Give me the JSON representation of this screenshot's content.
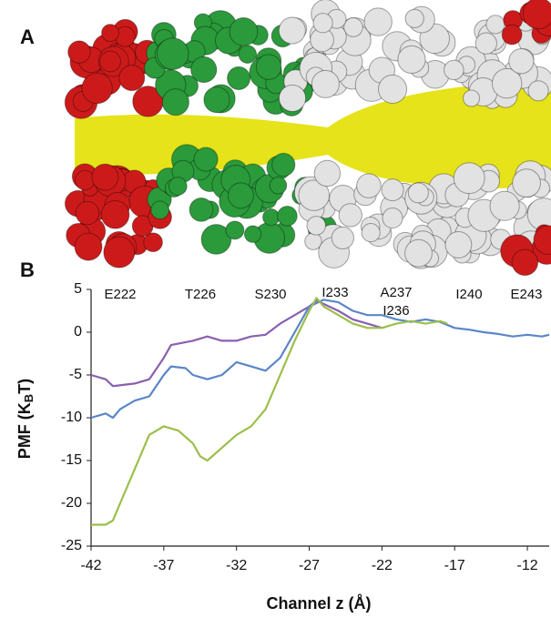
{
  "panel_a_label": "A",
  "chart_data": {
    "type": "line",
    "panel_label": "B",
    "xlabel": "Channel z (Å)",
    "ylabel": [
      "PMF (K",
      "B",
      "T)"
    ],
    "annotations": [
      "E222",
      "T226",
      "S230",
      "I233",
      "A237",
      "I236",
      "I240",
      "E243"
    ],
    "xlim": [
      -42,
      -10.5
    ],
    "xticks": [
      -42,
      -37,
      -32,
      -27,
      -22,
      -17,
      -12
    ],
    "ylim": [
      -25,
      5
    ],
    "yticks": [
      5,
      0,
      -5,
      -10,
      -15,
      -20,
      -25
    ],
    "series": [
      {
        "color": "#8a5fb0",
        "x": [
          -42,
          -41,
          -40.5,
          -39,
          -38,
          -37,
          -36.5,
          -35,
          -34,
          -33,
          -32,
          -31,
          -30,
          -29,
          -28,
          -27,
          -26.5,
          -25,
          -24,
          -23,
          -22
        ],
        "values": [
          -5,
          -5.5,
          -6.3,
          -6,
          -5.5,
          -3,
          -1.5,
          -1,
          -0.5,
          -1,
          -1,
          -0.5,
          -0.3,
          1,
          2,
          3,
          3.7,
          2.5,
          1.5,
          1,
          0.5
        ]
      },
      {
        "color": "#5a86c8",
        "x": [
          -42,
          -41,
          -40.5,
          -40,
          -39,
          -38,
          -37,
          -36.5,
          -35.5,
          -35,
          -34,
          -33,
          -32,
          -31,
          -30,
          -29,
          -28,
          -27,
          -26,
          -25,
          -24,
          -23,
          -22,
          -21,
          -20,
          -19,
          -18,
          -17,
          -16,
          -15,
          -14,
          -13,
          -12,
          -11,
          -10.5
        ],
        "values": [
          -10,
          -9.5,
          -10,
          -9,
          -8,
          -7.5,
          -5,
          -4,
          -4.2,
          -5,
          -5.5,
          -5,
          -3.5,
          -4,
          -4.5,
          -3,
          0,
          3,
          3.8,
          3.5,
          2.5,
          2,
          2,
          1.5,
          1.2,
          1.5,
          1.2,
          0.5,
          0.3,
          0,
          -0.2,
          -0.5,
          -0.3,
          -0.5,
          -0.3
        ]
      },
      {
        "color": "#9bbf4a",
        "x": [
          -42,
          -41,
          -40.5,
          -40,
          -39,
          -38,
          -37,
          -36,
          -35,
          -34.5,
          -34,
          -33,
          -32,
          -31,
          -30,
          -29,
          -28,
          -27,
          -26.5,
          -26,
          -25,
          -24,
          -23,
          -22,
          -21,
          -20,
          -19,
          -18,
          -17.5
        ],
        "values": [
          -22.5,
          -22.5,
          -22,
          -20,
          -16,
          -12,
          -11,
          -11.5,
          -13,
          -14.5,
          -15,
          -13.5,
          -12,
          -11,
          -9,
          -5,
          -1,
          2.5,
          4,
          3,
          2,
          1,
          0.5,
          0.5,
          1,
          1.3,
          1,
          1.3,
          1
        ]
      }
    ]
  }
}
